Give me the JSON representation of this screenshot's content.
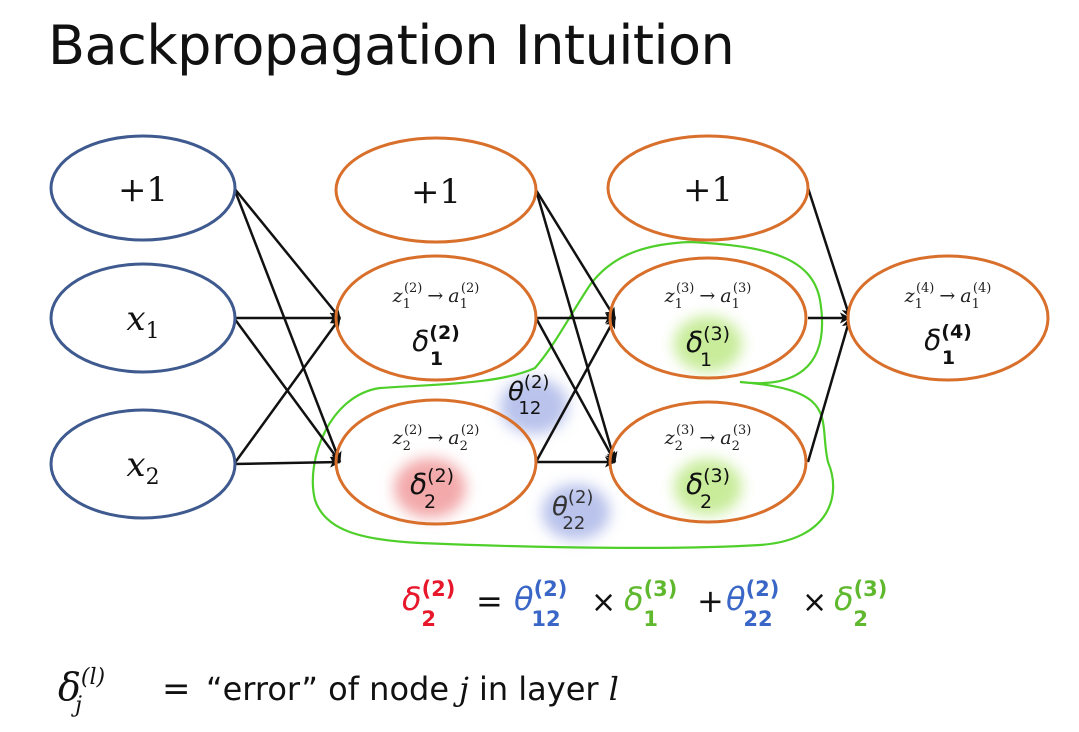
{
  "title": "Backpropagation Intuition",
  "nodes": {
    "input_bias": "+1",
    "x1": {
      "var": "x",
      "sub": "1"
    },
    "x2": {
      "var": "x",
      "sub": "2"
    },
    "hidden2_bias": "+1",
    "hidden3_bias": "+1",
    "n21": {
      "z": "z",
      "a": "a",
      "sub": "1",
      "sup": "(2)",
      "arrow": "→",
      "delta": "δ",
      "dsub": "1",
      "dsup": "(2)"
    },
    "n22": {
      "z": "z",
      "a": "a",
      "sub": "2",
      "sup": "(2)",
      "arrow": "→",
      "delta": "δ",
      "dsub": "2",
      "dsup": "(2)"
    },
    "n31": {
      "z": "z",
      "a": "a",
      "sub": "1",
      "sup": "(3)",
      "arrow": "→",
      "delta": "δ",
      "dsub": "1",
      "dsup": "(3)"
    },
    "n32": {
      "z": "z",
      "a": "a",
      "sub": "2",
      "sup": "(3)",
      "arrow": "→",
      "delta": "δ",
      "dsub": "2",
      "dsup": "(3)"
    },
    "n41": {
      "z": "z",
      "a": "a",
      "sub": "1",
      "sup": "(4)",
      "arrow": "→",
      "delta": "δ",
      "dsub": "1",
      "dsup": "(4)"
    }
  },
  "weights": {
    "w12": {
      "sym": "θ",
      "sub": "12",
      "sup": "(2)"
    },
    "w22": {
      "sym": "θ",
      "sub": "22",
      "sup": "(2)"
    }
  },
  "formula": {
    "lhs": {
      "sym": "δ",
      "sub": "2",
      "sup": "(2)"
    },
    "eq": "=",
    "t1": {
      "sym": "θ",
      "sub": "12",
      "sup": "(2)"
    },
    "times1": "×",
    "t2": {
      "sym": "δ",
      "sub": "1",
      "sup": "(3)"
    },
    "plus": "+",
    "t3": {
      "sym": "θ",
      "sub": "22",
      "sup": "(2)"
    },
    "times2": "×",
    "t4": {
      "sym": "δ",
      "sub": "2",
      "sup": "(3)"
    }
  },
  "definition": {
    "sym": "δ",
    "sub": "j",
    "sup": "(l)",
    "eq": "=",
    "text_a": "“error” of node",
    "j": "j",
    "text_b": "in layer",
    "l": "l"
  },
  "colors": {
    "input_stroke": "#3f5a8f",
    "node_stroke": "#d86f2b",
    "arrow": "#111111",
    "highlight_curve": "#4fcf2a",
    "red": "#e8182c",
    "blue": "#3a67c7",
    "green": "#5fb82e",
    "blob_red": "#f3a9aa",
    "blob_blue": "#b9c3ec",
    "blob_green": "#c8ec9a"
  }
}
